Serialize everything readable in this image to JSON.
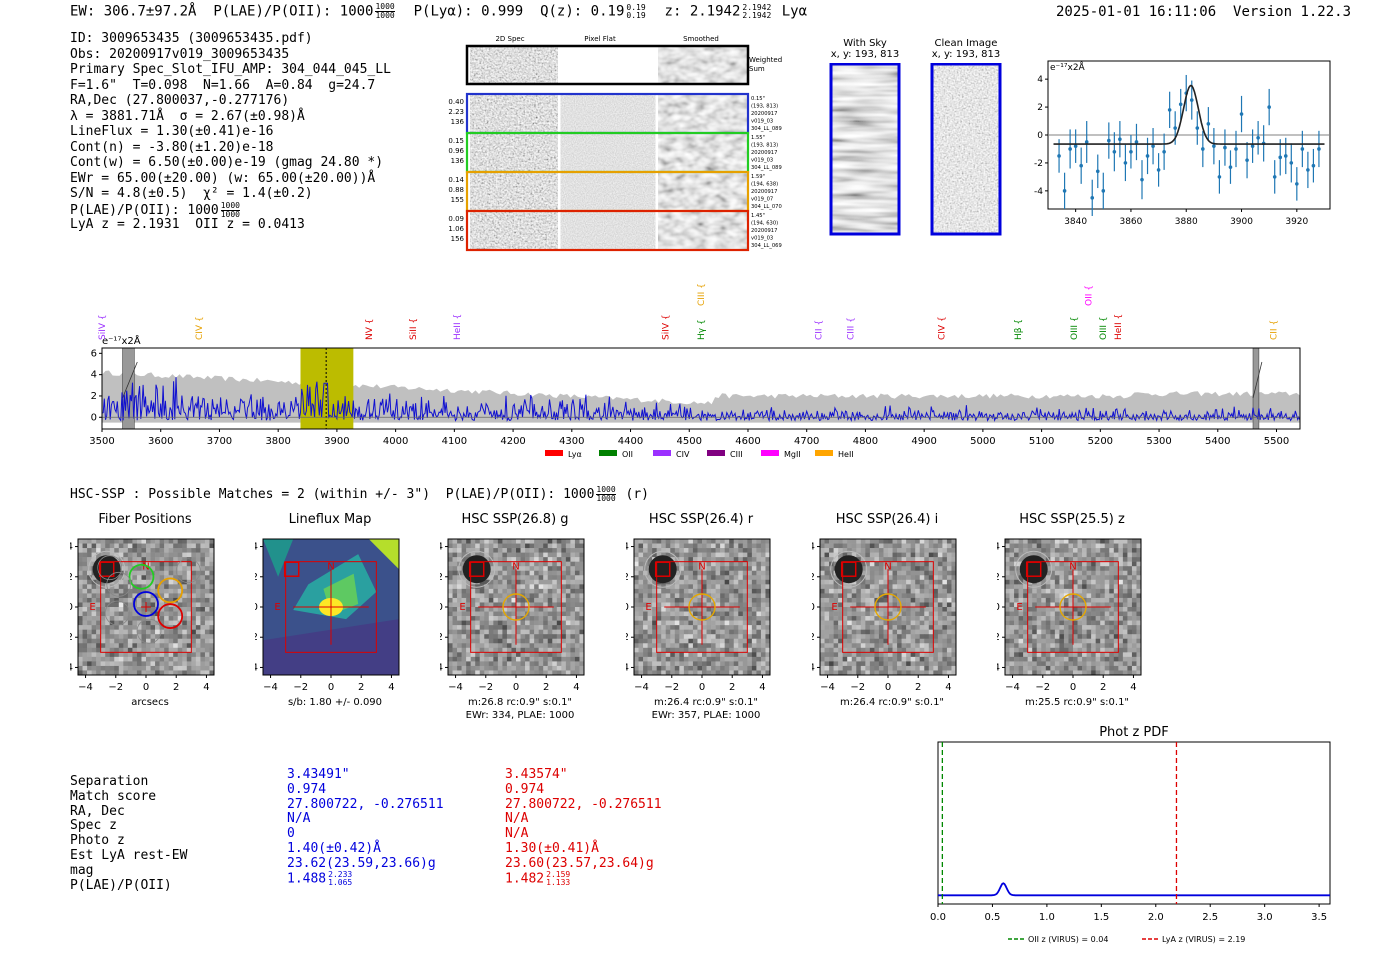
{
  "header": {
    "ew_label": "EW:",
    "ew_value": "306.7±97.2Å",
    "plae_label": "P(LAE)/P(OII):",
    "plae_value": "1000",
    "plae_hi": "1000",
    "plae_lo": "1000",
    "plya_label": "P(Lyα):",
    "plya_value": "0.999",
    "qz_label": "Q(z):",
    "qz_value": "0.19",
    "qz_hi": "0.19",
    "qz_lo": "0.19",
    "z_label": "z:",
    "z_value": "2.1942",
    "z_hi": "2.1942",
    "z_lo": "2.1942",
    "line_name": "Lyα",
    "timestamp": "2025-01-01 16:11:06",
    "version": "Version 1.22.3"
  },
  "info": {
    "lines": [
      "ID: 3009653435 (3009653435.pdf)",
      "Obs: 20200917v019_3009653435",
      "Primary Spec_Slot_IFU_AMP: 304_044_045_LL",
      "F=1.6\"  T=0.098  N=1.66  A=0.84  g=24.7",
      "RA,Dec (27.800037,-0.277176)",
      "λ = 3881.71Å  σ = 2.67(±0.98)Å",
      "LineFlux = 1.30(±0.41)e-16",
      "Cont(n) = -3.80(±1.20)e-18",
      "Cont(w) = 6.50(±0.00)e-19 (gmag 24.80 *)",
      "EWr = 65.00(±20.00) (w: 65.00(±20.00))Å",
      "S/N = 4.8(±0.5)  χ² = 1.4(±0.2)"
    ],
    "plae_line_label": "P(LAE)/P(OII):",
    "plae_line_value": "1000",
    "plae_line_hi": "1000",
    "plae_line_lo": "1000",
    "lya_z_line": "LyA z = 2.1931  OII z = 0.0413"
  },
  "spec_panel": {
    "col_titles": [
      "2D Spec",
      "Pixel Flat",
      "Smoothed"
    ],
    "weighted_sum": [
      "Weighted",
      "Sum"
    ],
    "rows": [
      {
        "left": [
          "0.40",
          "2.23",
          "136"
        ],
        "right": [
          "0.15\"",
          "(193, 813)",
          "20200917",
          "v019_03",
          "304_LL_089"
        ],
        "color": "#2233cc"
      },
      {
        "left": [
          "0.15",
          "0.96",
          "136"
        ],
        "right": [
          "1.55\"",
          "(193, 813)",
          "20200917",
          "v019_03",
          "304_LL_089"
        ],
        "color": "#22cc22"
      },
      {
        "left": [
          "0.14",
          "0.88",
          "155"
        ],
        "right": [
          "1.59\"",
          "(194, 638)",
          "20200917",
          "v019_07",
          "304_LL_070"
        ],
        "color": "#e6a000"
      },
      {
        "left": [
          "0.09",
          "1.06",
          "156"
        ],
        "right": [
          "1.45\"",
          "(194, 630)",
          "20200917",
          "v019_03",
          "304_LL_069"
        ],
        "color": "#dd2200"
      }
    ]
  },
  "cutouts": {
    "with_sky_title": "With Sky",
    "with_sky_coords": "x, y: 193, 813",
    "clean_title": "Clean Image",
    "clean_coords": "x, y: 193, 813"
  },
  "colors": {
    "blue": "#0000dd",
    "red": "#dd0000",
    "spectrum_line": "#1010d0",
    "err_fill": "#c0c0c0",
    "lya_band": "#bcbc00",
    "fit_points": "#1f77b4"
  },
  "chart_data": [
    {
      "type": "scatter",
      "title": "",
      "ylabel_units": "e⁻¹⁷x2Å",
      "xlim": [
        3830,
        3932
      ],
      "ylim": [
        -5.3,
        5.3
      ],
      "xticks": [
        3840,
        3860,
        3880,
        3900,
        3920
      ],
      "yticks": [
        -4,
        -2,
        0,
        2,
        4
      ],
      "points": {
        "x": [
          3834,
          3836,
          3838,
          3840,
          3842,
          3844,
          3846,
          3848,
          3850,
          3852,
          3854,
          3856,
          3858,
          3860,
          3862,
          3864,
          3866,
          3868,
          3870,
          3872,
          3874,
          3876,
          3878,
          3880,
          3882,
          3884,
          3886,
          3888,
          3890,
          3892,
          3894,
          3896,
          3898,
          3900,
          3902,
          3904,
          3906,
          3908,
          3910,
          3912,
          3914,
          3916,
          3918,
          3920,
          3922,
          3924,
          3926,
          3928
        ],
        "y": [
          -1.5,
          -4.0,
          -1.0,
          -0.8,
          -2.2,
          -0.5,
          -4.5,
          -2.6,
          -4.0,
          -0.4,
          -1.2,
          -0.3,
          -2.0,
          -1.2,
          -0.5,
          -3.2,
          -1.5,
          -0.8,
          -2.5,
          -1.2,
          1.8,
          0.5,
          2.2,
          3.0,
          2.5,
          0.5,
          -1.0,
          0.8,
          -0.8,
          -3.0,
          -0.9,
          -2.3,
          -1.0,
          1.5,
          -1.8,
          -0.8,
          -0.2,
          -0.6,
          2.0,
          -3.0,
          -1.6,
          -1.5,
          -2.0,
          -3.5,
          -1.0,
          -2.5,
          -2.2,
          -1.0
        ],
        "err": [
          1.2,
          1.3,
          1.4,
          1.2,
          1.3,
          1.5,
          1.3,
          1.2,
          1.3,
          1.3,
          1.4,
          1.3,
          1.3,
          1.2,
          1.3,
          1.4,
          1.3,
          1.3,
          1.2,
          1.3,
          1.3,
          1.2,
          1.1,
          1.3,
          1.4,
          1.2,
          1.3,
          1.2,
          1.3,
          1.2,
          1.3,
          1.2,
          1.3,
          1.3,
          1.3,
          1.2,
          1.2,
          1.3,
          1.3,
          1.2,
          1.3,
          1.3,
          1.4,
          1.2,
          1.3,
          1.3,
          1.2,
          1.3
        ]
      },
      "fit": {
        "center": 3881.7,
        "sigma": 2.67,
        "amplitude": 4.2,
        "continuum": -0.65
      }
    },
    {
      "type": "line",
      "ylabel_units": "e⁻¹⁷x2Å",
      "xlim": [
        3500,
        5540
      ],
      "ylim": [
        -1.1,
        6.5
      ],
      "xticks": [
        3500,
        3600,
        3700,
        3800,
        3900,
        4000,
        4100,
        4200,
        4300,
        4400,
        4500,
        4600,
        4700,
        4800,
        4900,
        5000,
        5100,
        5200,
        5300,
        5400,
        5500
      ],
      "yticks": [
        0,
        2,
        4,
        6
      ],
      "lya_window": [
        3838,
        3928
      ],
      "lya_center": 3881.7,
      "masked": [
        [
          3535,
          3555
        ],
        [
          5460,
          5470
        ]
      ],
      "line_markers": [
        {
          "label": "SiIV",
          "x": 3505,
          "color": "#9b30ff",
          "row": 0
        },
        {
          "label": "CIV",
          "x": 3670,
          "color": "#e6a000",
          "row": 0
        },
        {
          "label": "NV",
          "x": 3960,
          "color": "#dd0000",
          "row": 0
        },
        {
          "label": "SiII",
          "x": 4035,
          "color": "#dd0000",
          "row": 0
        },
        {
          "label": "HeII",
          "x": 4110,
          "color": "#9b30ff",
          "row": 0
        },
        {
          "label": "SiIV",
          "x": 4465,
          "color": "#dd0000",
          "row": 0
        },
        {
          "label": "Hγ",
          "x": 4525,
          "color": "#008800",
          "row": 0
        },
        {
          "label": "CIII",
          "x": 4525,
          "color": "#e6a000",
          "row": 1
        },
        {
          "label": "CII",
          "x": 4725,
          "color": "#9b30ff",
          "row": 0
        },
        {
          "label": "CIII",
          "x": 4780,
          "color": "#9b30ff",
          "row": 0
        },
        {
          "label": "CIV",
          "x": 4935,
          "color": "#dd0000",
          "row": 0
        },
        {
          "label": "Hβ",
          "x": 5065,
          "color": "#008800",
          "row": 0
        },
        {
          "label": "OII",
          "x": 5185,
          "color": "#ff00ff",
          "row": 1
        },
        {
          "label": "OIII",
          "x": 5160,
          "color": "#008800",
          "row": 0
        },
        {
          "label": "OIII",
          "x": 5210,
          "color": "#008800",
          "row": 0
        },
        {
          "label": "HeII",
          "x": 5235,
          "color": "#dd0000",
          "row": 0
        },
        {
          "label": "CII",
          "x": 5500,
          "color": "#e6a000",
          "row": 0
        }
      ],
      "legend": [
        {
          "label": "Lyα",
          "color": "#ff0000"
        },
        {
          "label": "OII",
          "color": "#008000"
        },
        {
          "label": "CIV",
          "color": "#9b30ff"
        },
        {
          "label": "CIII",
          "color": "#800080"
        },
        {
          "label": "MgII",
          "color": "#ff00ff"
        },
        {
          "label": "HeII",
          "color": "#ffa500"
        }
      ],
      "legend_position": "below"
    },
    {
      "type": "line",
      "title": "Phot z PDF",
      "xlim": [
        0,
        3.6
      ],
      "xticks": [
        0.0,
        0.5,
        1.0,
        1.5,
        2.0,
        2.5,
        3.0,
        3.5
      ],
      "xticklabels": [
        "0.0",
        "0.5",
        "1.0",
        "1.5",
        "2.0",
        "2.5",
        "3.0",
        "3.5"
      ],
      "peak_z": 0.6,
      "oii_z": 0.04,
      "lya_z": 2.19,
      "legend": [
        {
          "label": "OII z (VIRUS) = 0.04",
          "color": "#008800",
          "style": "dashed"
        },
        {
          "label": "LyA z (VIRUS) = 2.19",
          "color": "#dd0000",
          "style": "dashed"
        }
      ],
      "legend_position": "below"
    }
  ],
  "hsc": {
    "title_prefix": "HSC-SSP : Possible Matches = 2 (within +/- 3\")",
    "plae_label": "P(LAE)/P(OII):",
    "plae_value": "1000",
    "plae_hi": "1000",
    "plae_lo": "1000",
    "suffix": "(r)",
    "stamps": [
      {
        "title": "Fiber Positions",
        "caption1": "arcsecs",
        "caption2": "",
        "kind": "fibers"
      },
      {
        "title": "Lineflux Map",
        "caption1": "s/b: 1.80 +/- 0.090",
        "caption2": "",
        "kind": "lineflux"
      },
      {
        "title": "HSC SSP(26.8) g",
        "caption1": "m:26.8 rc:0.9\"  s:0.1\"",
        "caption2": "EWr: 334, PLAE: 1000",
        "kind": "hsc"
      },
      {
        "title": "HSC SSP(26.4) r",
        "caption1": "m:26.4 rc:0.9\"  s:0.1\"",
        "caption2": "EWr: 357, PLAE: 1000",
        "kind": "hsc"
      },
      {
        "title": "HSC SSP(26.4) i",
        "caption1": "m:26.4 rc:0.9\"  s:0.1\"",
        "caption2": "",
        "kind": "hsc"
      },
      {
        "title": "HSC SSP(25.5) z",
        "caption1": "m:25.5 rc:0.9\"  s:0.1\"",
        "caption2": "",
        "kind": "hsc"
      }
    ],
    "stamp_ticks": [
      "4",
      "2",
      "0",
      "−2",
      "−4"
    ],
    "stamp_xticks": [
      "−4",
      "−2",
      "0",
      "2",
      "4"
    ],
    "north_label": "N",
    "east_label": "E"
  },
  "table": {
    "labels": [
      "Separation",
      "Match score",
      "RA, Dec",
      "Spec z",
      "Photo z",
      "Est LyA rest-EW",
      "mag",
      "P(LAE)/P(OII)"
    ],
    "blue": [
      "3.43491\"",
      "0.974",
      "27.800722, -0.276511",
      "N/A",
      "0",
      "1.40(±0.42)Å",
      "23.62(23.59,23.66)g"
    ],
    "blue_plae": "1.488",
    "blue_plae_hi": "2.233",
    "blue_plae_lo": "1.065",
    "red": [
      "3.43574\"",
      "0.974",
      "27.800722, -0.276511",
      "N/A",
      "N/A",
      "1.30(±0.41)Å",
      "23.60(23.57,23.64)g"
    ],
    "red_plae": "1.482",
    "red_plae_hi": "2.159",
    "red_plae_lo": "1.133"
  }
}
